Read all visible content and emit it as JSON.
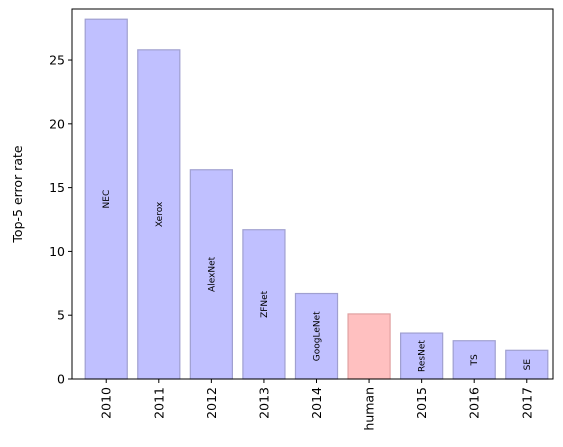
{
  "chart_data": {
    "type": "bar",
    "title": "",
    "xlabel": "",
    "ylabel": "Top-5 error rate",
    "ylim": [
      0,
      29
    ],
    "yticks": [
      0,
      5,
      10,
      15,
      20,
      25
    ],
    "categories": [
      "2010",
      "2011",
      "2012",
      "2013",
      "2014",
      "human",
      "2015",
      "2016",
      "2017"
    ],
    "values": [
      28.2,
      25.8,
      16.4,
      11.7,
      6.7,
      5.1,
      3.6,
      3.0,
      2.25
    ],
    "bar_labels": [
      "NEC",
      "Xerox",
      "AlexNet",
      "ZFNet",
      "GoogLeNet",
      "",
      "ResNet",
      "TS",
      "SE"
    ],
    "bar_colors": [
      "#c0c0ff",
      "#c0c0ff",
      "#c0c0ff",
      "#c0c0ff",
      "#c0c0ff",
      "#ffc0c0",
      "#c0c0ff",
      "#c0c0ff",
      "#c0c0ff"
    ],
    "edge_colors": [
      "#a0a0d0",
      "#a0a0d0",
      "#a0a0d0",
      "#a0a0d0",
      "#a0a0d0",
      "#e0a0a0",
      "#a0a0d0",
      "#a0a0d0",
      "#a0a0d0"
    ],
    "grid": false,
    "x_tick_rotation": "vertical"
  }
}
